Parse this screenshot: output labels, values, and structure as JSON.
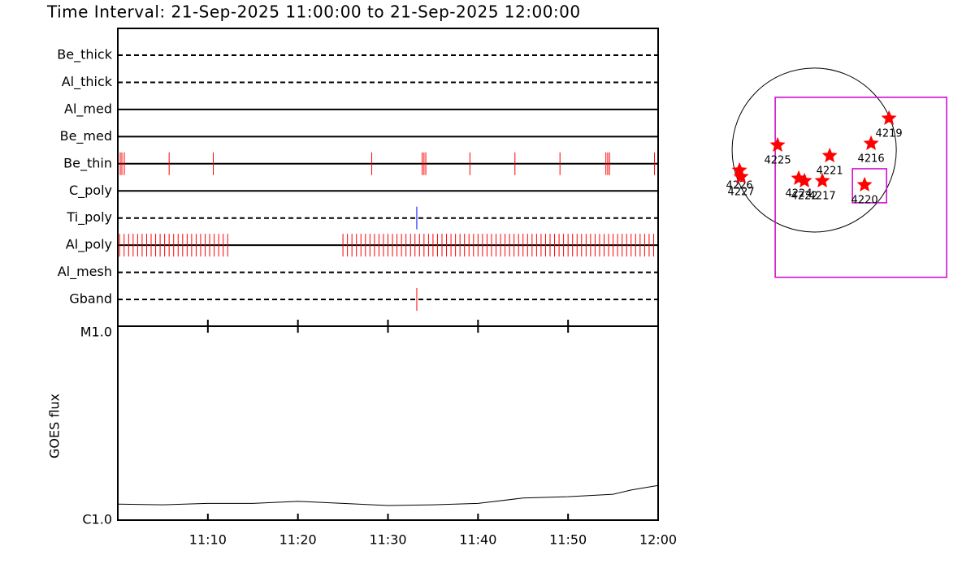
{
  "chart_data": [
    {
      "type": "event",
      "title": "Time Interval: 21-Sep-2025 11:00:00 to 21-Sep-2025 12:00:00",
      "xlim": [
        0,
        60
      ],
      "series": [
        {
          "name": "Be_thick",
          "style": "dashed",
          "color": "#ff0000",
          "x": []
        },
        {
          "name": "Al_thick",
          "style": "dashed",
          "color": "#ff0000",
          "x": []
        },
        {
          "name": "Al_med",
          "style": "solid",
          "color": "#ff0000",
          "x": []
        },
        {
          "name": "Be_med",
          "style": "solid",
          "color": "#ff0000",
          "x": []
        },
        {
          "name": "Be_thin",
          "style": "solid",
          "color": "#ff0000",
          "x": [
            0.27,
            0.45,
            0.72,
            5.7,
            10.6,
            28.2,
            33.8,
            34.0,
            34.2,
            39.1,
            44.1,
            49.1,
            54.2,
            54.4,
            54.6,
            59.6
          ]
        },
        {
          "name": "C_poly",
          "style": "solid",
          "color": "#ff0000",
          "x": []
        },
        {
          "name": "Ti_poly",
          "style": "dashed",
          "color": "#0000ff",
          "x": [
            33.2
          ]
        },
        {
          "name": "Al_poly",
          "style": "solid",
          "color": "#ff0000",
          "x": [
            0.2,
            0.7,
            1.2,
            1.7,
            2.2,
            2.7,
            3.2,
            3.7,
            4.2,
            4.7,
            5.2,
            5.7,
            6.2,
            6.7,
            7.2,
            7.7,
            8.2,
            8.7,
            9.2,
            9.7,
            10.2,
            10.7,
            11.2,
            11.7,
            12.2,
            25,
            25.5,
            26,
            26.5,
            27,
            27.5,
            28,
            28.5,
            29,
            29.5,
            30,
            30.5,
            31,
            31.5,
            32,
            32.5,
            33,
            33.5,
            34,
            34.5,
            35,
            35.5,
            36,
            36.5,
            37,
            37.5,
            38,
            38.5,
            39,
            39.5,
            40,
            40.5,
            41,
            41.5,
            42,
            42.5,
            43,
            43.5,
            44,
            44.5,
            45,
            45.5,
            46,
            46.5,
            47,
            47.5,
            48,
            48.5,
            49,
            49.5,
            50,
            50.5,
            51,
            51.5,
            52,
            52.5,
            53,
            53.5,
            54,
            54.5,
            55,
            55.5,
            56,
            56.5,
            57,
            57.5,
            58,
            58.5,
            59,
            59.5
          ]
        },
        {
          "name": "Al_mesh",
          "style": "dashed",
          "color": "#ff0000",
          "x": []
        },
        {
          "name": "Gband",
          "style": "dashed",
          "color": "#ff0000",
          "x": [
            33.2
          ]
        }
      ]
    },
    {
      "type": "line",
      "ylabel": "GOES flux",
      "log_y": true,
      "color": "#000000",
      "xlim": [
        0,
        60
      ],
      "xticks": [
        {
          "value": 10,
          "label": "11:10"
        },
        {
          "value": 20,
          "label": "11:20"
        },
        {
          "value": 30,
          "label": "11:30"
        },
        {
          "value": 40,
          "label": "11:40"
        },
        {
          "value": 50,
          "label": "11:50"
        },
        {
          "value": 60,
          "label": "12:00"
        }
      ],
      "ylim": [
        1e-06,
        1e-05
      ],
      "yticks": [
        {
          "value": 1e-06,
          "label": "C1.0"
        },
        {
          "value": 1e-05,
          "label": "M1.0"
        }
      ],
      "x": [
        0,
        5,
        10,
        15,
        20,
        25,
        30,
        35,
        40,
        45,
        50,
        55,
        57,
        60
      ],
      "values": [
        1.21e-06,
        1.2e-06,
        1.22e-06,
        1.22e-06,
        1.25e-06,
        1.22e-06,
        1.19e-06,
        1.2e-06,
        1.22e-06,
        1.3e-06,
        1.32e-06,
        1.36e-06,
        1.43e-06,
        1.51e-06
      ]
    },
    {
      "type": "scatter",
      "color": "#ff0000",
      "xlim": [
        -1160,
        1880
      ],
      "ylim": [
        -1570,
        1188
      ],
      "sun_radius": 960,
      "labels": [
        "4219",
        "4216",
        "4225",
        "4221",
        "4226",
        "4227",
        "4224",
        "4222",
        "4217",
        "4220"
      ],
      "x": [
        874,
        665,
        -428,
        181,
        -874,
        -855,
        -181,
        -114,
        95,
        589
      ],
      "y": [
        371,
        76,
        57,
        -67,
        -238,
        -314,
        -333,
        -361,
        -361,
        -409
      ],
      "boxes": [
        {
          "color": "#cc00cc",
          "x": [
            -456,
            1549
          ],
          "y": [
            -1491,
            618
          ]
        },
        {
          "color": "#cc00cc",
          "x": [
            447,
            846
          ],
          "y": [
            -618,
            -219
          ]
        }
      ]
    }
  ]
}
